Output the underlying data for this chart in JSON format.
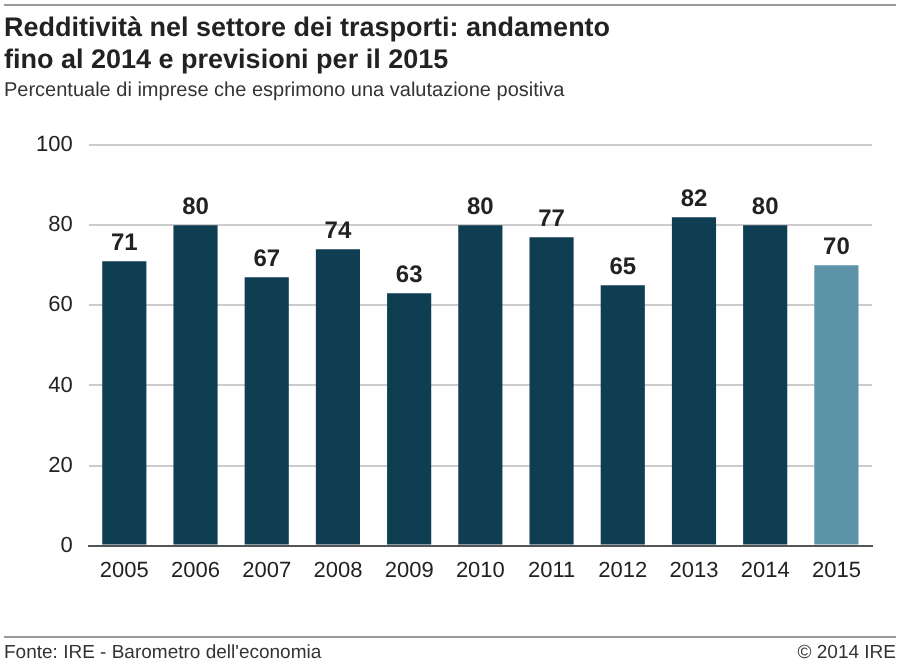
{
  "chart_data": {
    "type": "bar",
    "title": "Redditività nel settore dei trasporti: andamento fino al 2014 e previsioni per il 2015",
    "subtitle": "Percentuale di imprese che esprimono una valutazione positiva",
    "categories": [
      "2005",
      "2006",
      "2007",
      "2008",
      "2009",
      "2010",
      "2011",
      "2012",
      "2013",
      "2014",
      "2015"
    ],
    "values": [
      71,
      80,
      67,
      74,
      63,
      80,
      77,
      65,
      82,
      80,
      70
    ],
    "colors": [
      "#0f3d52",
      "#0f3d52",
      "#0f3d52",
      "#0f3d52",
      "#0f3d52",
      "#0f3d52",
      "#0f3d52",
      "#0f3d52",
      "#0f3d52",
      "#0f3d52",
      "#5c93a9"
    ],
    "ylim": [
      0,
      100
    ],
    "yticks": [
      0,
      20,
      40,
      60,
      80,
      100
    ],
    "grid": "y",
    "legend": false,
    "data_labels": true,
    "annotations": [
      "Fonte: IRE - Barometro dell'economia",
      "© 2014 IRE"
    ]
  }
}
